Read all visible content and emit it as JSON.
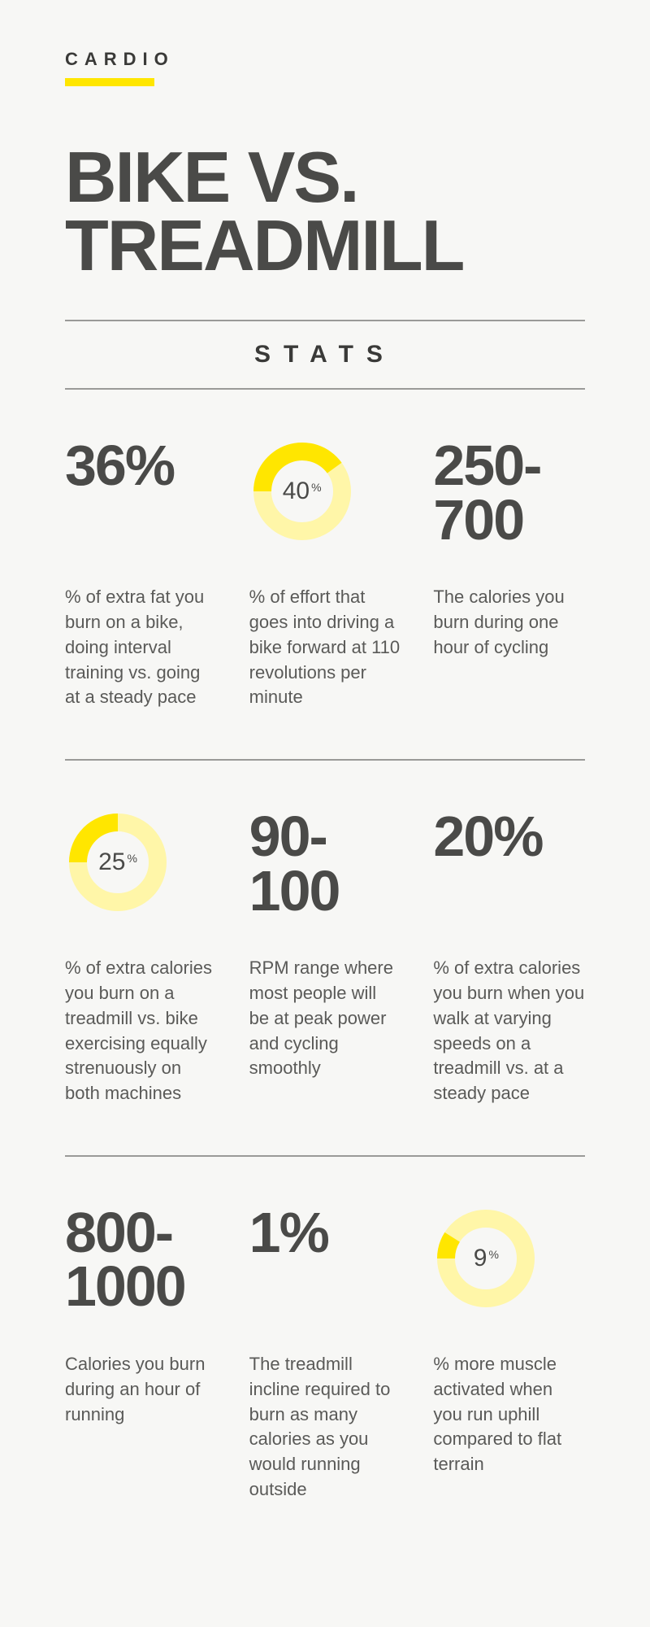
{
  "colors": {
    "background": "#f7f7f5",
    "text_primary": "#4a4a48",
    "text_body": "#5a5a58",
    "accent": "#ffe600",
    "accent_light": "#fff6a8",
    "divider": "#9a9a98"
  },
  "typography": {
    "eyebrow_fontsize": 22,
    "eyebrow_letterspacing": 8,
    "title_fontsize": 88,
    "title_weight": 900,
    "stats_header_fontsize": 30,
    "stats_header_letterspacing": 16,
    "stat_big_fontsize": 70,
    "stat_big_weight": 900,
    "desc_fontsize": 22,
    "donut_label_fontsize": 30
  },
  "eyebrow": "CARDIO",
  "title": "BIKE VS. TREADMILL",
  "stats_header": "STATS",
  "rows": [
    {
      "cells": [
        {
          "type": "big",
          "value": "36%",
          "desc": "% of extra fat you burn on a bike, doing interval training vs. going at a steady pace"
        },
        {
          "type": "donut",
          "value": 40,
          "label": "40",
          "desc": "% of effort that goes into driving a bike forward at 110 revolutions per minute"
        },
        {
          "type": "big",
          "value": "250-700",
          "desc": "The calories you burn during one hour of cycling"
        }
      ]
    },
    {
      "cells": [
        {
          "type": "donut",
          "value": 25,
          "label": "25",
          "desc": "% of extra calories you burn on a treadmill vs. bike exercising equally strenuously on both machines"
        },
        {
          "type": "big",
          "value": "90-100",
          "desc": "RPM range where most people will be at peak power and cycling smoothly"
        },
        {
          "type": "big",
          "value": "20%",
          "desc": "% of extra calories you burn when you walk at varying speeds on a treadmill vs. at a steady pace"
        }
      ]
    },
    {
      "cells": [
        {
          "type": "big",
          "value": "800-1000",
          "desc": "Calories you burn during an hour of running"
        },
        {
          "type": "big",
          "value": "1%",
          "desc": "The treadmill incline required to burn as many calories as you would running outside"
        },
        {
          "type": "donut",
          "value": 9,
          "label": "9",
          "desc": "% more muscle activated when you run uphill compared to flat terrain"
        }
      ]
    }
  ],
  "donut_style": {
    "outer_radius": 60,
    "inner_radius": 38,
    "fill_color": "#ffe600",
    "track_color": "#fff6a8",
    "start_angle_deg": 180,
    "direction": "clockwise"
  }
}
